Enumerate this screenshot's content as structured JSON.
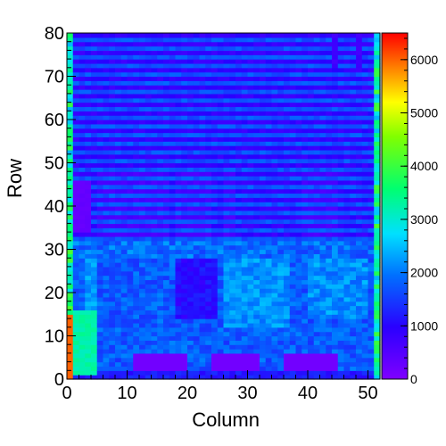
{
  "chart_data": {
    "type": "heatmap",
    "title": "",
    "xlabel": "Column",
    "ylabel": "Row",
    "x_range": [
      0,
      52
    ],
    "y_range": [
      0,
      80
    ],
    "x_ticks": [
      0,
      10,
      20,
      30,
      40,
      50
    ],
    "y_ticks": [
      0,
      10,
      20,
      30,
      40,
      50,
      60,
      70,
      80
    ],
    "color_range": [
      0,
      6500
    ],
    "colorbar_ticks": [
      0,
      1000,
      2000,
      3000,
      4000,
      5000,
      6000
    ],
    "colormap": "rainbow (violet-blue-cyan-green-yellow-red)",
    "grid": false,
    "nx": 52,
    "ny": 80,
    "notes": "Approximate cell values (counts) read from the color scale; violet blocks near row 2 are lowest, border columns 0 and 51 are highest."
  }
}
